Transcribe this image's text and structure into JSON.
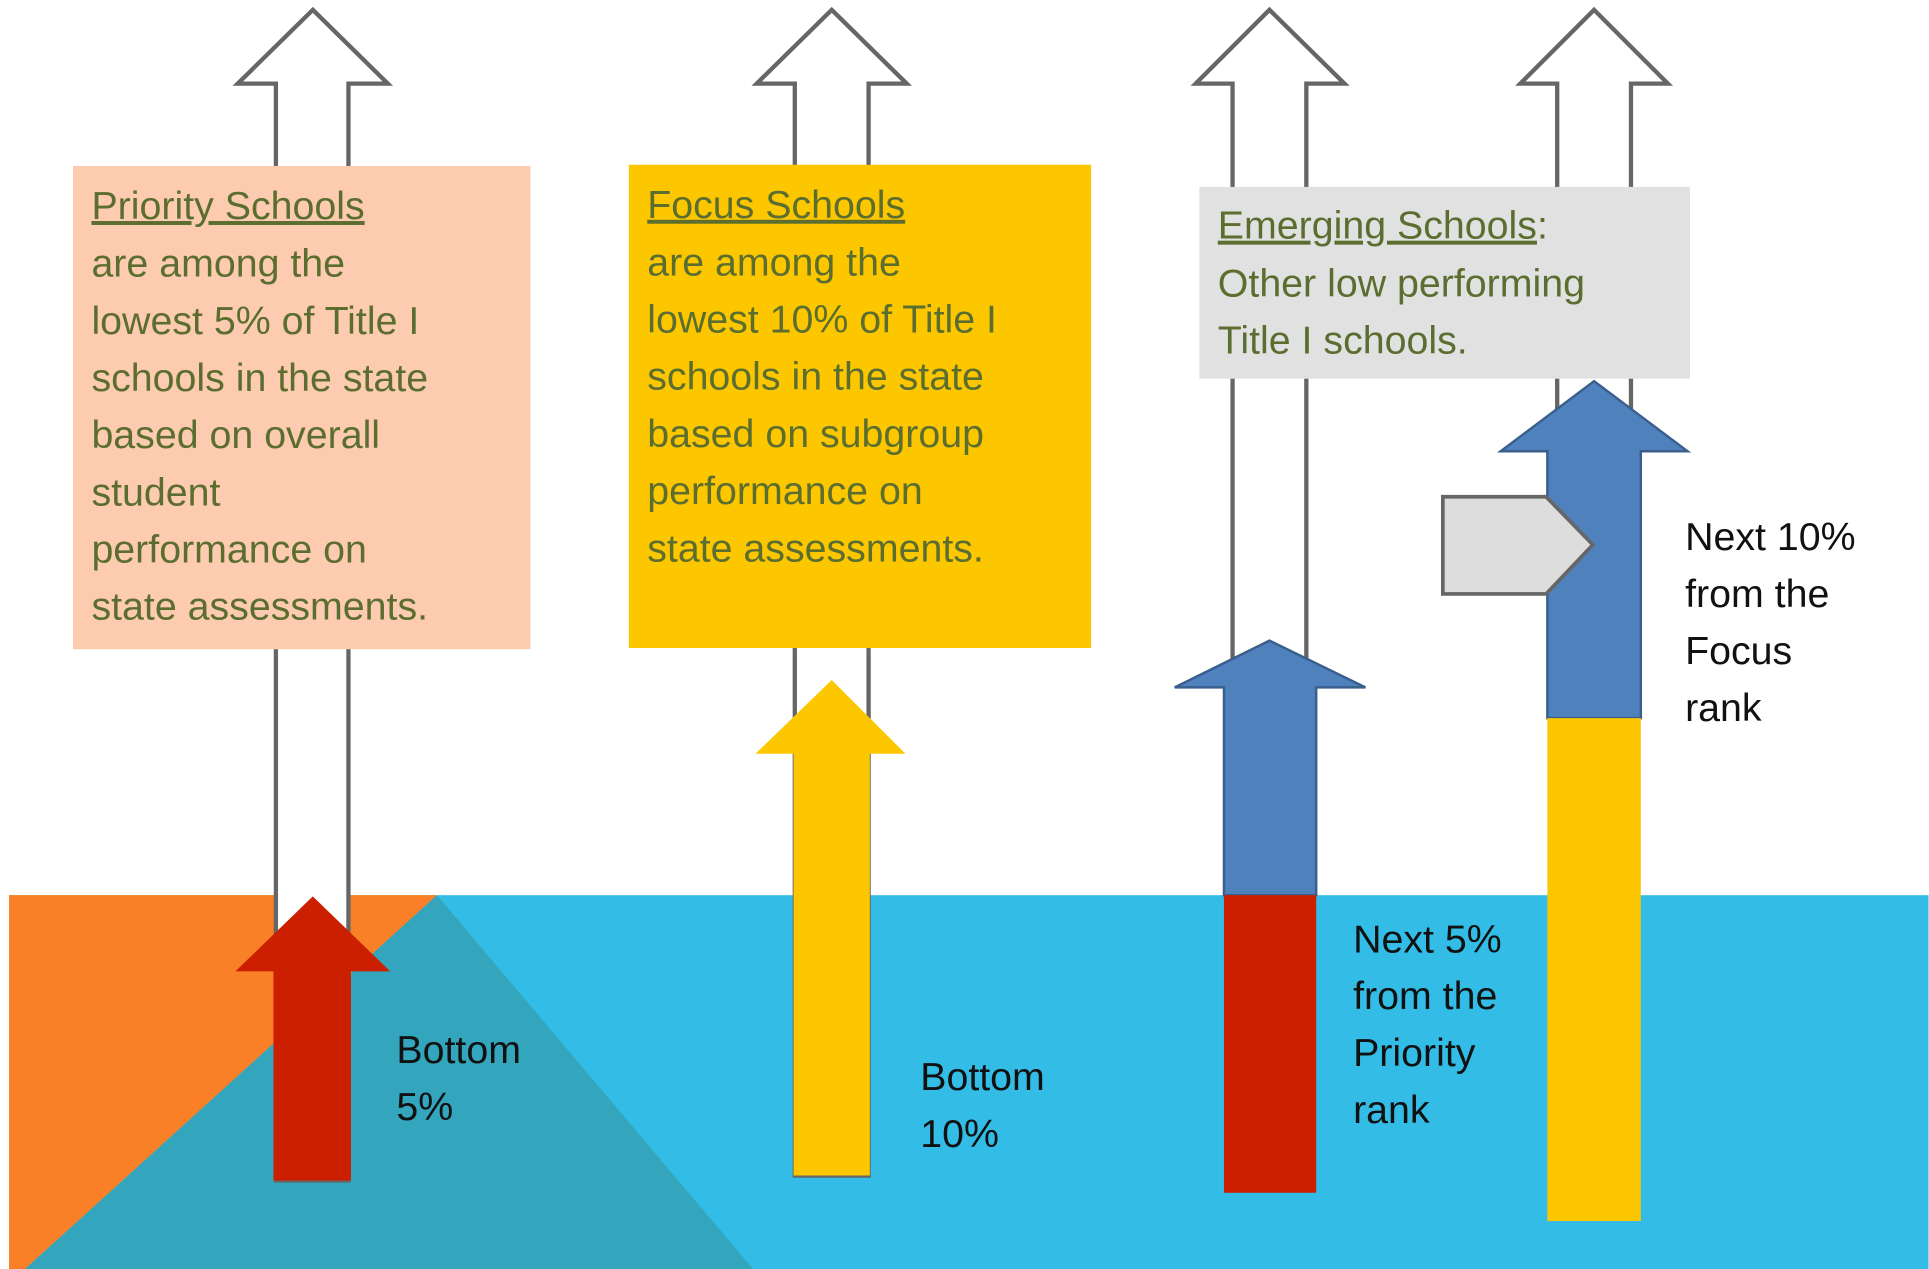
{
  "boxes": [
    {
      "title": "Priority Schools",
      "lines": [
        " are among the",
        "lowest 5% of Title I",
        "schools in the state",
        "based on overall",
        "student",
        "performance on",
        "state assessments."
      ]
    },
    {
      "title": "Focus Schools",
      "lines": [
        " are among the",
        "lowest 10% of Title I",
        "schools in the state",
        "based on subgroup",
        "performance on",
        "state assessments."
      ]
    },
    {
      "title": "Emerging Schools",
      "title_suffix": ":",
      "lines": [
        "Other low performing",
        "Title I schools."
      ]
    }
  ],
  "labels": [
    {
      "lines": [
        "Bottom",
        "5%"
      ]
    },
    {
      "lines": [
        "Bottom",
        "10%"
      ]
    },
    {
      "lines": [
        "Next 5%",
        "from the",
        "Priority",
        "rank"
      ]
    },
    {
      "lines": [
        "Next 10%",
        "from the",
        "Focus",
        "rank"
      ]
    }
  ]
}
